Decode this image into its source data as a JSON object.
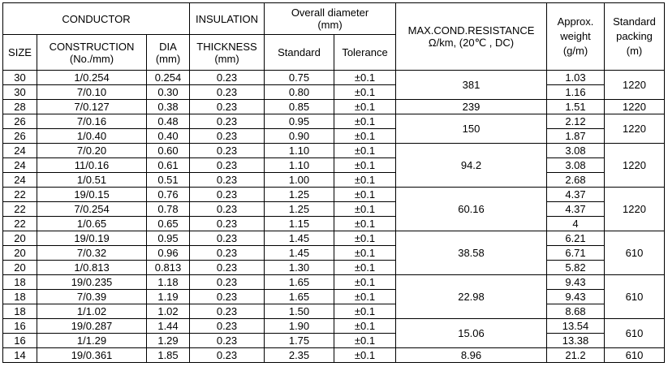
{
  "header": {
    "conductor": "CONDUCTOR",
    "insulation": "INSULATION",
    "overall_diameter": "Overall diameter",
    "overall_diameter_unit": "(mm)",
    "resistance": "MAX.COND.RESISTANCE",
    "resistance_unit": "Ω/km, (20℃ , DC)",
    "weight_l1": "Approx.",
    "weight_l2": "weight",
    "weight_l3": "(g/m)",
    "packing_l1": "Standard",
    "packing_l2": "packing",
    "packing_l3": "(m)",
    "size": "SIZE",
    "construction": "CONSTRUCTION",
    "construction_unit": "(No./mm)",
    "dia": "DIA",
    "dia_unit": "(mm)",
    "thickness": "THICKNESS",
    "thickness_unit": "(mm)",
    "standard": "Standard",
    "tolerance": "Tolerance"
  },
  "rows": [
    {
      "size": "30",
      "construction": "1/0.254",
      "dia": "0.254",
      "thickness": "0.23",
      "standard": "0.75",
      "tolerance": "±0.1",
      "weight": "1.03"
    },
    {
      "size": "30",
      "construction": "7/0.10",
      "dia": "0.30",
      "thickness": "0.23",
      "standard": "0.80",
      "tolerance": "±0.1",
      "weight": "1.16"
    },
    {
      "size": "28",
      "construction": "7/0.127",
      "dia": "0.38",
      "thickness": "0.23",
      "standard": "0.85",
      "tolerance": "±0.1",
      "weight": "1.51"
    },
    {
      "size": "26",
      "construction": "7/0.16",
      "dia": "0.48",
      "thickness": "0.23",
      "standard": "0.95",
      "tolerance": "±0.1",
      "weight": "2.12"
    },
    {
      "size": "26",
      "construction": "1/0.40",
      "dia": "0.40",
      "thickness": "0.23",
      "standard": "0.90",
      "tolerance": "±0.1",
      "weight": "1.87"
    },
    {
      "size": "24",
      "construction": "7/0.20",
      "dia": "0.60",
      "thickness": "0.23",
      "standard": "1.10",
      "tolerance": "±0.1",
      "weight": "3.08"
    },
    {
      "size": "24",
      "construction": "11/0.16",
      "dia": "0.61",
      "thickness": "0.23",
      "standard": "1.10",
      "tolerance": "±0.1",
      "weight": "3.08"
    },
    {
      "size": "24",
      "construction": "1/0.51",
      "dia": "0.51",
      "thickness": "0.23",
      "standard": "1.00",
      "tolerance": "±0.1",
      "weight": "2.68"
    },
    {
      "size": "22",
      "construction": "19/0.15",
      "dia": "0.76",
      "thickness": "0.23",
      "standard": "1.25",
      "tolerance": "±0.1",
      "weight": "4.37"
    },
    {
      "size": "22",
      "construction": "7/0.254",
      "dia": "0.78",
      "thickness": "0.23",
      "standard": "1.25",
      "tolerance": "±0.1",
      "weight": "4.37"
    },
    {
      "size": "22",
      "construction": "1/0.65",
      "dia": "0.65",
      "thickness": "0.23",
      "standard": "1.15",
      "tolerance": "±0.1",
      "weight": "4"
    },
    {
      "size": "20",
      "construction": "19/0.19",
      "dia": "0.95",
      "thickness": "0.23",
      "standard": "1.45",
      "tolerance": "±0.1",
      "weight": "6.21"
    },
    {
      "size": "20",
      "construction": "7/0.32",
      "dia": "0.96",
      "thickness": "0.23",
      "standard": "1.45",
      "tolerance": "±0.1",
      "weight": "6.71"
    },
    {
      "size": "20",
      "construction": "1/0.813",
      "dia": "0.813",
      "thickness": "0.23",
      "standard": "1.30",
      "tolerance": "±0.1",
      "weight": "5.82"
    },
    {
      "size": "18",
      "construction": "19/0.235",
      "dia": "1.18",
      "thickness": "0.23",
      "standard": "1.65",
      "tolerance": "±0.1",
      "weight": "9.43"
    },
    {
      "size": "18",
      "construction": "7/0.39",
      "dia": "1.19",
      "thickness": "0.23",
      "standard": "1.65",
      "tolerance": "±0.1",
      "weight": "9.43"
    },
    {
      "size": "18",
      "construction": "1/1.02",
      "dia": "1.02",
      "thickness": "0.23",
      "standard": "1.50",
      "tolerance": "±0.1",
      "weight": "8.68"
    },
    {
      "size": "16",
      "construction": "19/0.287",
      "dia": "1.44",
      "thickness": "0.23",
      "standard": "1.90",
      "tolerance": "±0.1",
      "weight": "13.54"
    },
    {
      "size": "16",
      "construction": "1/1.29",
      "dia": "1.29",
      "thickness": "0.23",
      "standard": "1.75",
      "tolerance": "±0.1",
      "weight": "13.38"
    },
    {
      "size": "14",
      "construction": "19/0.361",
      "dia": "1.85",
      "thickness": "0.23",
      "standard": "2.35",
      "tolerance": "±0.1",
      "weight": "21.2"
    }
  ],
  "groups": [
    {
      "count": 2,
      "resistance": "381",
      "packing": "1220"
    },
    {
      "count": 1,
      "resistance": "239",
      "packing": "1220"
    },
    {
      "count": 2,
      "resistance": "150",
      "packing": "1220"
    },
    {
      "count": 3,
      "resistance": "94.2",
      "packing": "1220"
    },
    {
      "count": 3,
      "resistance": "60.16",
      "packing": "1220"
    },
    {
      "count": 3,
      "resistance": "38.58",
      "packing": "610"
    },
    {
      "count": 3,
      "resistance": "22.98",
      "packing": "610"
    },
    {
      "count": 2,
      "resistance": "15.06",
      "packing": "610"
    },
    {
      "count": 1,
      "resistance": "8.96",
      "packing": "610"
    }
  ]
}
